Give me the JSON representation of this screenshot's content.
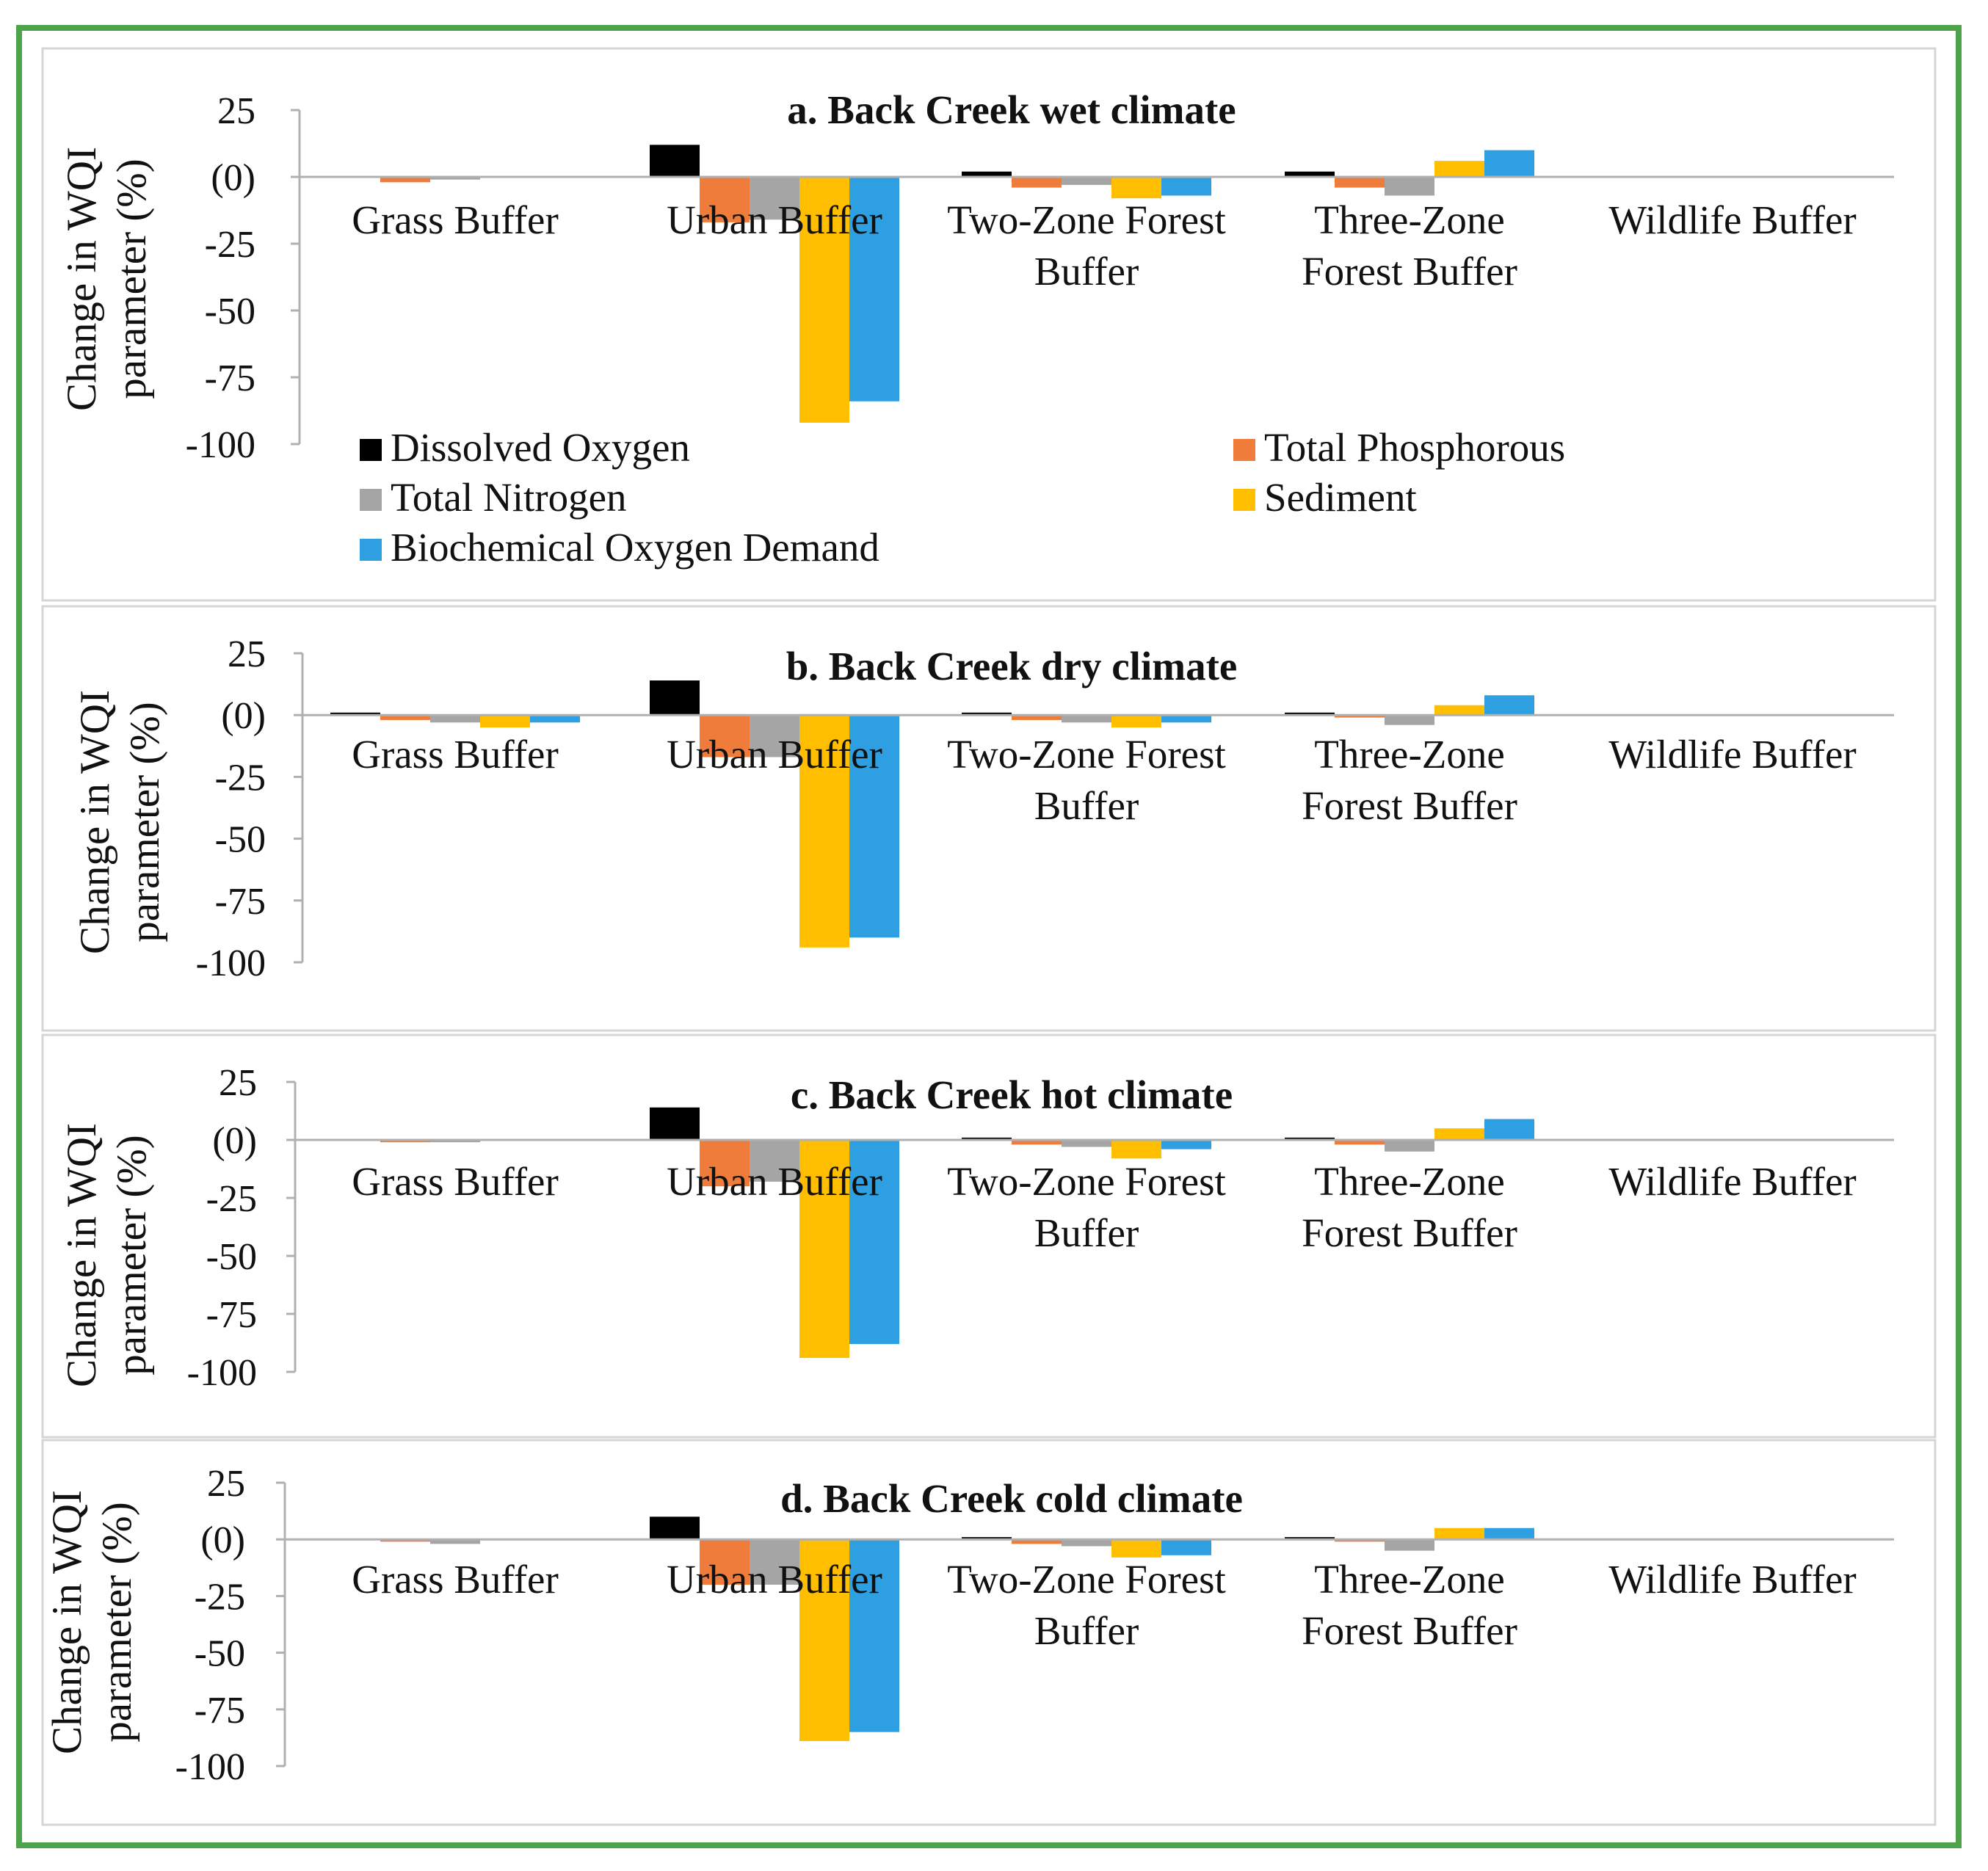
{
  "chart_data": [
    {
      "type": "bar",
      "title": "a. Back Creek wet climate",
      "ylabel": "Change in WQI parameter (%)",
      "xlabel": "",
      "ylim": [
        -100,
        25
      ],
      "yticks": [
        25,
        0,
        -25,
        -50,
        -75,
        -100
      ],
      "ytick_labels": [
        "25",
        "(0)",
        "-25",
        "-50",
        "-75",
        "-100"
      ],
      "categories": [
        [
          "Grass Buffer"
        ],
        [
          "Urban Buffer"
        ],
        [
          "Two-Zone Forest",
          "Buffer"
        ],
        [
          "Three-Zone",
          "Forest Buffer"
        ],
        [
          "Wildlife Buffer"
        ]
      ],
      "series": [
        {
          "name": "Dissolved Oxygen",
          "values": [
            0,
            12,
            2,
            2,
            0
          ]
        },
        {
          "name": "Total Phosphorous",
          "values": [
            -2,
            -17,
            -4,
            -4,
            0
          ]
        },
        {
          "name": "Total Nitrogen",
          "values": [
            -1,
            -16,
            -3,
            -7,
            0
          ]
        },
        {
          "name": "Sediment",
          "values": [
            0,
            -92,
            -8,
            6,
            0
          ]
        },
        {
          "name": "Biochemical Oxygen Demand",
          "values": [
            0,
            -84,
            -7,
            10,
            0
          ]
        }
      ],
      "legend": "bottom",
      "grid": false
    },
    {
      "type": "bar",
      "title": "b. Back Creek dry climate",
      "ylabel": "Change in WQI parameter (%)",
      "xlabel": "",
      "ylim": [
        -100,
        25
      ],
      "yticks": [
        25,
        0,
        -25,
        -50,
        -75,
        -100
      ],
      "ytick_labels": [
        "25",
        "(0)",
        "-25",
        "-50",
        "-75",
        "-100"
      ],
      "categories": [
        [
          "Grass Buffer"
        ],
        [
          "Urban Buffer"
        ],
        [
          "Two-Zone Forest",
          "Buffer"
        ],
        [
          "Three-Zone",
          "Forest Buffer"
        ],
        [
          "Wildlife Buffer"
        ]
      ],
      "series": [
        {
          "name": "Dissolved Oxygen",
          "values": [
            1,
            14,
            1,
            1,
            0
          ]
        },
        {
          "name": "Total Phosphorous",
          "values": [
            -2,
            -17,
            -2,
            -1,
            0
          ]
        },
        {
          "name": "Total Nitrogen",
          "values": [
            -3,
            -17,
            -3,
            -4,
            0
          ]
        },
        {
          "name": "Sediment",
          "values": [
            -5,
            -94,
            -5,
            4,
            0
          ]
        },
        {
          "name": "Biochemical Oxygen Demand",
          "values": [
            -3,
            -90,
            -3,
            8,
            0
          ]
        }
      ],
      "legend": "none",
      "grid": false
    },
    {
      "type": "bar",
      "title": "c. Back Creek hot climate",
      "ylabel": "Change in WQI parameter (%)",
      "xlabel": "",
      "ylim": [
        -100,
        25
      ],
      "yticks": [
        25,
        0,
        -25,
        -50,
        -75,
        -100
      ],
      "ytick_labels": [
        "25",
        "(0)",
        "-25",
        "-50",
        "-75",
        "-100"
      ],
      "categories": [
        [
          "Grass Buffer"
        ],
        [
          "Urban Buffer"
        ],
        [
          "Two-Zone Forest",
          "Buffer"
        ],
        [
          "Three-Zone",
          "Forest Buffer"
        ],
        [
          "Wildlife Buffer"
        ]
      ],
      "series": [
        {
          "name": "Dissolved Oxygen",
          "values": [
            0,
            14,
            1,
            1,
            0
          ]
        },
        {
          "name": "Total Phosphorous",
          "values": [
            -1,
            -20,
            -2,
            -2,
            0
          ]
        },
        {
          "name": "Total Nitrogen",
          "values": [
            -1,
            -18,
            -3,
            -5,
            0
          ]
        },
        {
          "name": "Sediment",
          "values": [
            0,
            -94,
            -8,
            5,
            0
          ]
        },
        {
          "name": "Biochemical Oxygen Demand",
          "values": [
            0,
            -88,
            -4,
            9,
            0
          ]
        }
      ],
      "legend": "none",
      "grid": false
    },
    {
      "type": "bar",
      "title": "d. Back Creek cold climate",
      "ylabel": "Change in WQI parameter (%)",
      "xlabel": "",
      "ylim": [
        -100,
        25
      ],
      "yticks": [
        25,
        0,
        -25,
        -50,
        -75,
        -100
      ],
      "ytick_labels": [
        "25",
        "(0)",
        "-25",
        "-50",
        "-75",
        "-100"
      ],
      "categories": [
        [
          "Grass Buffer"
        ],
        [
          "Urban Buffer"
        ],
        [
          "Two-Zone Forest",
          "Buffer"
        ],
        [
          "Three-Zone",
          "Forest Buffer"
        ],
        [
          "Wildlife Buffer"
        ]
      ],
      "series": [
        {
          "name": "Dissolved Oxygen",
          "values": [
            0,
            10,
            1,
            1,
            0
          ]
        },
        {
          "name": "Total Phosphorous",
          "values": [
            -1,
            -20,
            -2,
            -1,
            0
          ]
        },
        {
          "name": "Total Nitrogen",
          "values": [
            -2,
            -20,
            -3,
            -5,
            0
          ]
        },
        {
          "name": "Sediment",
          "values": [
            0,
            -89,
            -8,
            5,
            0
          ]
        },
        {
          "name": "Biochemical Oxygen Demand",
          "values": [
            0,
            -85,
            -7,
            5,
            0
          ]
        }
      ],
      "legend": "none",
      "grid": false
    }
  ],
  "colors": {
    "Dissolved Oxygen": "#000000",
    "Total Phosphorous": "#f07c3b",
    "Total Nitrogen": "#a5a5a5",
    "Sediment": "#ffbf00",
    "Biochemical Oxygen Demand": "#2e9fe0",
    "frame": "#4ea24a",
    "panel_border": "#d6d6d6",
    "axis": "#b0b0b0",
    "text": "#111111"
  }
}
